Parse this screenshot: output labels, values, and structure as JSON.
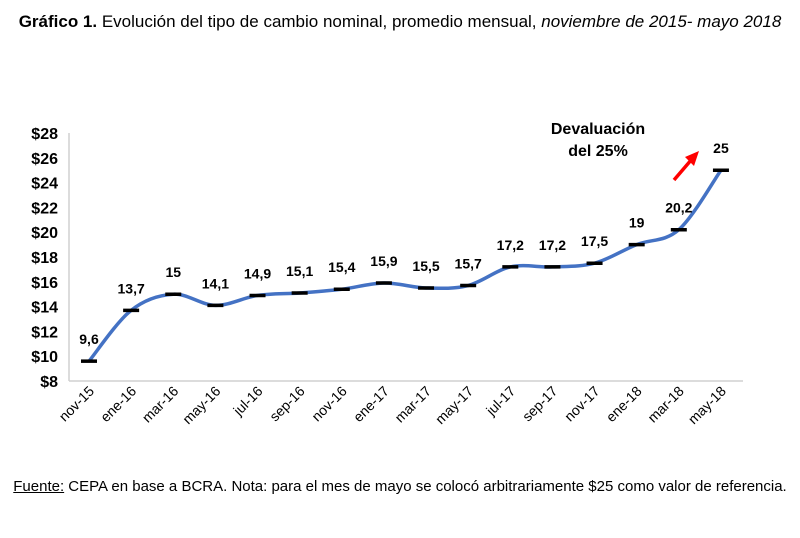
{
  "title": {
    "bold": "Gráfico 1.",
    "regular": " Evolución del tipo de cambio nominal, promedio mensual, ",
    "italic": "noviembre de 2015- mayo 2018"
  },
  "note": {
    "label": "Fuente:",
    "text": " CEPA en base a BCRA. Nota: para el mes de mayo se colocó arbitrariamente $25 como valor de referencia."
  },
  "chart_data": {
    "type": "line",
    "categories": [
      "nov-15",
      "ene-16",
      "mar-16",
      "may-16",
      "jul-16",
      "sep-16",
      "nov-16",
      "ene-17",
      "mar-17",
      "may-17",
      "jul-17",
      "sep-17",
      "nov-17",
      "ene-18",
      "mar-18",
      "may-18"
    ],
    "values": [
      9.6,
      13.7,
      15,
      14.1,
      14.9,
      15.1,
      15.4,
      15.9,
      15.5,
      15.7,
      17.2,
      17.2,
      17.5,
      19,
      20.2,
      25
    ],
    "data_labels": [
      "9,6",
      "13,7",
      "15",
      "14,1",
      "14,9",
      "15,1",
      "15,4",
      "15,9",
      "15,5",
      "15,7",
      "17,2",
      "17,2",
      "17,5",
      "19",
      "20,2",
      "25"
    ],
    "y_ticks": [
      "$8",
      "$10",
      "$12",
      "$14",
      "$16",
      "$18",
      "$20",
      "$22",
      "$24",
      "$26",
      "$28"
    ],
    "ylim": [
      8,
      28
    ],
    "grid": false,
    "line_color": "#4472C4",
    "marker": "dash",
    "annotation": {
      "lines": [
        "Devaluación",
        "del 25%"
      ],
      "arrow_color": "#FF0000"
    }
  }
}
